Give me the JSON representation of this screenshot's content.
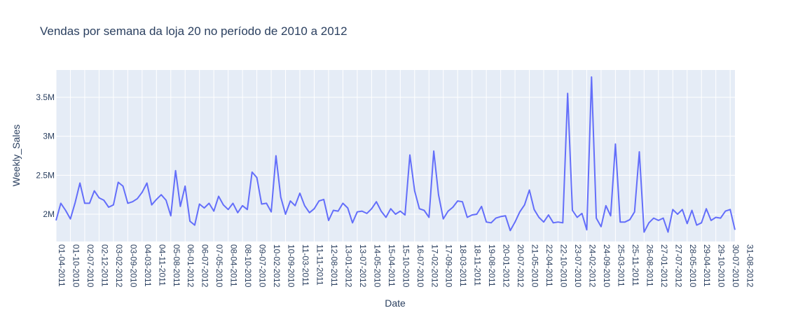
{
  "chart_data": {
    "type": "line",
    "title": "Vendas por semana da loja 20 no período de 2010 a 2012",
    "xlabel": "Date",
    "ylabel": "Weekly_Sales",
    "ylim": [
      1650000,
      3850000
    ],
    "y_ticks": [
      2000000,
      2500000,
      3000000,
      3500000
    ],
    "y_tick_labels": [
      "2M",
      "2.5M",
      "3M",
      "3.5M"
    ],
    "x_tick_labels": [
      "01-04-2011",
      "01-10-2010",
      "02-07-2010",
      "02-12-2011",
      "03-02-2012",
      "03-09-2010",
      "04-03-2011",
      "04-11-2011",
      "05-08-2011",
      "06-01-2012",
      "06-07-2012",
      "07-05-2010",
      "08-04-2011",
      "08-10-2010",
      "09-07-2010",
      "10-02-2012",
      "10-09-2010",
      "11-03-2011",
      "11-11-2011",
      "12-08-2011",
      "13-01-2012",
      "13-07-2012",
      "14-05-2010",
      "15-04-2011",
      "15-10-2010",
      "16-07-2010",
      "17-02-2012",
      "17-09-2010",
      "18-03-2011",
      "18-11-2011",
      "19-08-2011",
      "20-01-2012",
      "20-07-2012",
      "21-05-2010",
      "22-04-2011",
      "22-10-2010",
      "23-07-2010",
      "24-02-2012",
      "24-09-2010",
      "25-03-2011",
      "25-11-2011",
      "26-08-2011",
      "27-01-2012",
      "27-07-2012",
      "28-05-2010",
      "29-04-2011",
      "29-10-2010",
      "30-07-2010",
      "31-08-2012"
    ],
    "grid": true,
    "legend": "none",
    "line_color": "#636efa",
    "series": [
      {
        "values": [
          1920000,
          2140000,
          2050000,
          1940000,
          2150000,
          2400000,
          2140000,
          2140000,
          2300000,
          2210000,
          2180000,
          2090000,
          2120000,
          2410000,
          2360000,
          2140000,
          2160000,
          2200000,
          2280000,
          2400000,
          2120000,
          2190000,
          2250000,
          2180000,
          1980000,
          2560000,
          2100000,
          2360000,
          1910000,
          1860000,
          2130000,
          2080000,
          2140000,
          2040000,
          2230000,
          2120000,
          2060000,
          2140000,
          2020000,
          2110000,
          2060000,
          2540000,
          2470000,
          2130000,
          2140000,
          2030000,
          2750000,
          2220000,
          2000000,
          2170000,
          2110000,
          2270000,
          2110000,
          2020000,
          2070000,
          2170000,
          2190000,
          1920000,
          2050000,
          2040000,
          2140000,
          2080000,
          1890000,
          2030000,
          2040000,
          2010000,
          2070000,
          2160000,
          2040000,
          1960000,
          2070000,
          2000000,
          2040000,
          1990000,
          2760000,
          2300000,
          2070000,
          2050000,
          1960000,
          2810000,
          2250000,
          1940000,
          2040000,
          2090000,
          2170000,
          2160000,
          1960000,
          1990000,
          2000000,
          2100000,
          1900000,
          1890000,
          1950000,
          1970000,
          1980000,
          1790000,
          1900000,
          2030000,
          2120000,
          2310000,
          2060000,
          1960000,
          1900000,
          1990000,
          1890000,
          1900000,
          1890000,
          3550000,
          2050000,
          1960000,
          2010000,
          1800000,
          3760000,
          1950000,
          1840000,
          2110000,
          1980000,
          2900000,
          1900000,
          1900000,
          1930000,
          2030000,
          2800000,
          1770000,
          1890000,
          1950000,
          1920000,
          1950000,
          1770000,
          2060000,
          2000000,
          2060000,
          1880000,
          2050000,
          1860000,
          1890000,
          2070000,
          1920000,
          1960000,
          1950000,
          2040000,
          2060000,
          1800000
        ]
      }
    ]
  }
}
